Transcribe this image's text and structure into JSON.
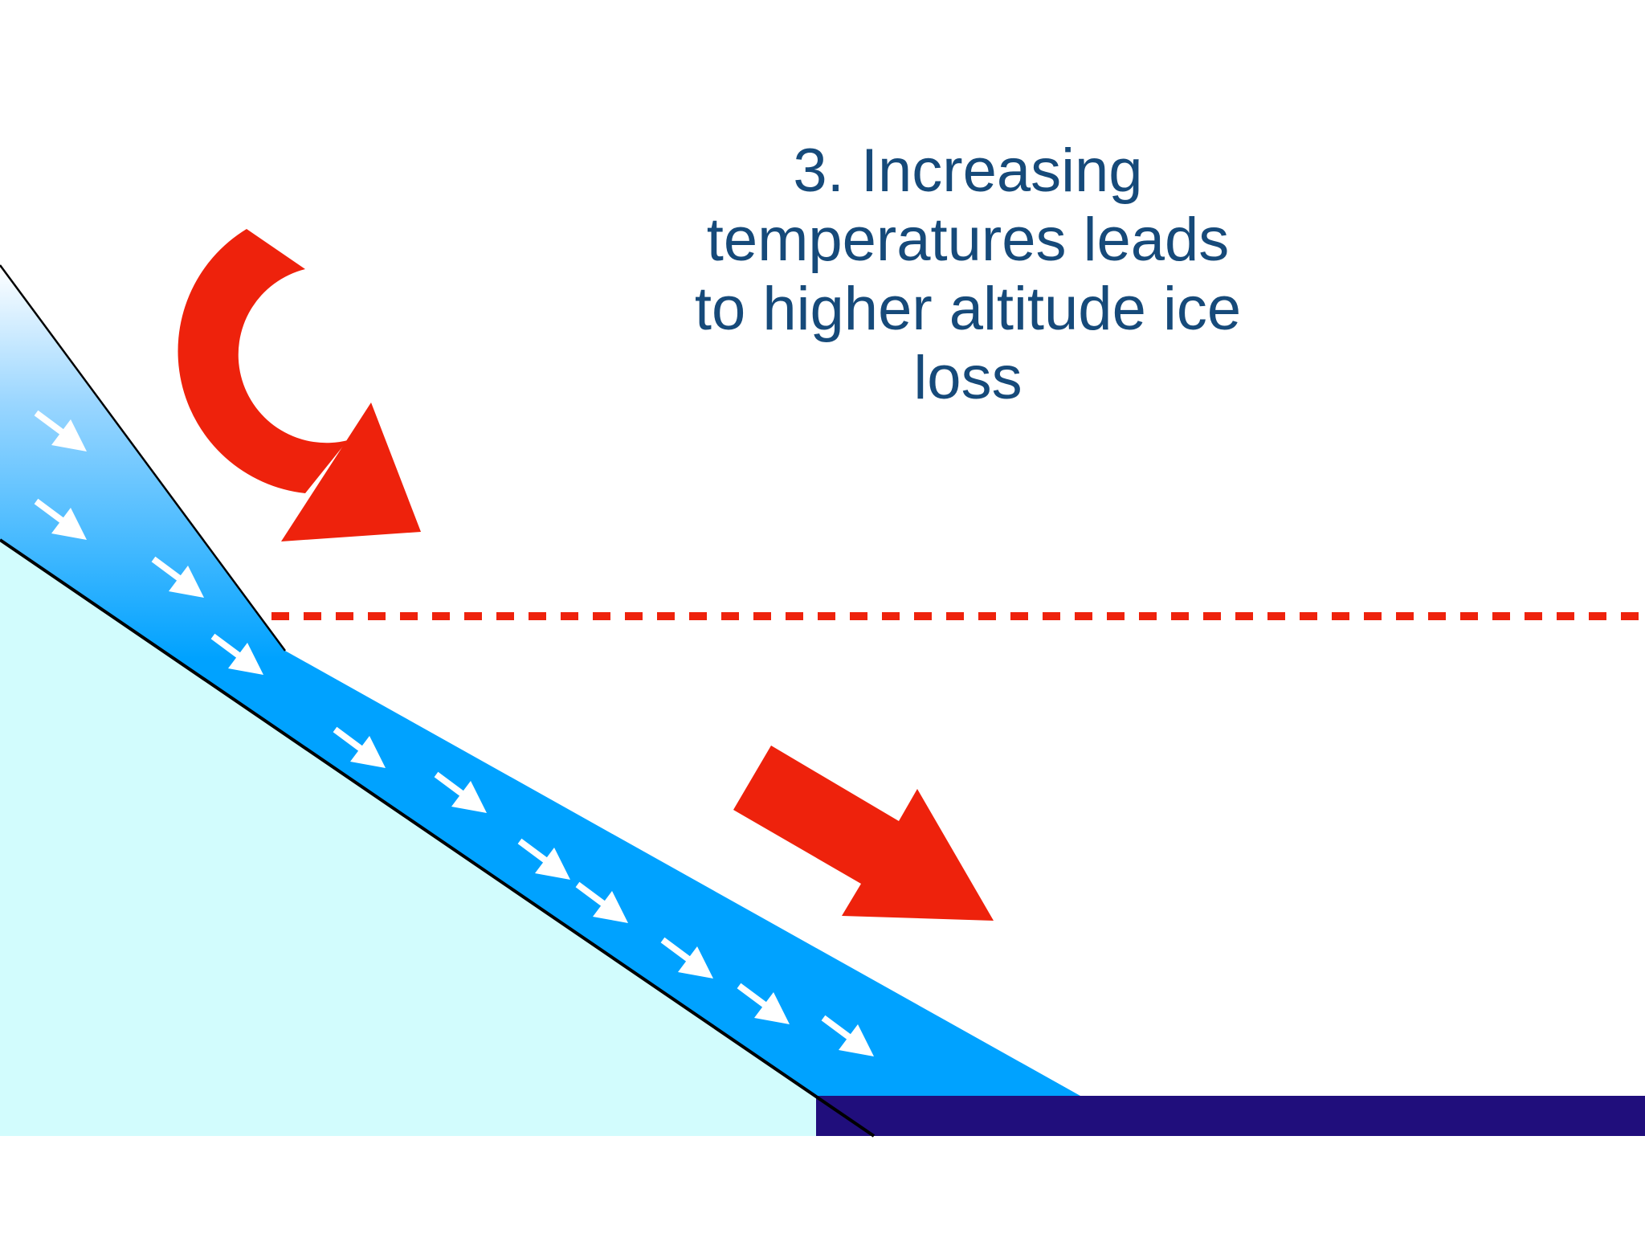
{
  "caption": {
    "lines": [
      "3. Increasing",
      "temperatures leads",
      "to higher altitude ice",
      "loss"
    ]
  },
  "colors": {
    "ground": "#d2fcfd",
    "glacier": "#00a2ff",
    "glacier_top_fade": "#ffffff",
    "water": "#200e7c",
    "heat_arrow": "#ee220c",
    "equilibrium_line": "#ee220c",
    "flow_arrow": "#ffffff",
    "outline": "#000000",
    "caption_text": "#164a7a"
  },
  "icons": {
    "heat": "curved-arrow",
    "ice_flow": "small-arrow"
  }
}
